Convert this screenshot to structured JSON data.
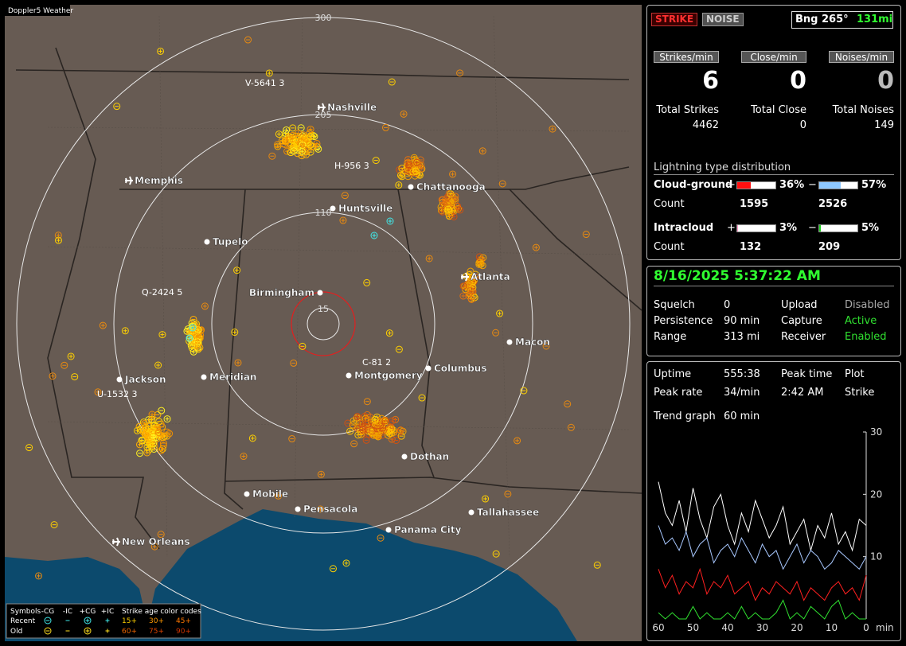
{
  "map": {
    "title": "Doppler5 Weather",
    "rings": [
      "300",
      "205",
      "110",
      "15"
    ],
    "cities": [
      "Nashville",
      "Memphis",
      "Chattanooga",
      "Huntsville",
      "Tupelo",
      "Atlanta",
      "Birmingham",
      "Macon",
      "Jackson",
      "Meridian",
      "Montgomery",
      "Columbus",
      "Dothan",
      "Mobile",
      "Pensacola",
      "Tallahassee",
      "Panama City",
      "New Orleans"
    ],
    "storms": [
      "V-5641 3",
      "H-956 3",
      "Q-2424 5",
      "C-81 2",
      "U-1532 3"
    ],
    "legend": {
      "symbols": "Symbols",
      "types": [
        "-CG",
        "-IC",
        "+CG",
        "+IC"
      ],
      "age_title": "Strike age color codes",
      "rows": [
        {
          "label": "Recent",
          "ages": [
            "15+",
            "30+",
            "45+"
          ]
        },
        {
          "label": "Old",
          "ages": [
            "60+",
            "75+",
            "90+"
          ]
        }
      ]
    }
  },
  "mode": {
    "strike": "STRIKE",
    "noise": "NOISE",
    "bearing": "Bng 265°",
    "distance": "131mi"
  },
  "rates": [
    {
      "label": "Strikes/min",
      "value": "6"
    },
    {
      "label": "Close/min",
      "value": "0"
    },
    {
      "label": "Noises/min",
      "value": "0"
    }
  ],
  "totals": [
    {
      "label": "Total Strikes",
      "value": "4462"
    },
    {
      "label": "Total Close",
      "value": "0"
    },
    {
      "label": "Total Noises",
      "value": "149"
    }
  ],
  "distribution": {
    "title": "Lightning type distribution",
    "rows": [
      {
        "label": "Cloud-ground",
        "pos_sign": "+",
        "pos": {
          "value": 36,
          "label": "36%"
        },
        "pos_color": "#ff1010",
        "neg_sign": "−",
        "neg": {
          "value": 57,
          "label": "57%"
        },
        "neg_color": "#8ec8ff",
        "count_label": "Count",
        "pos_count": "1595",
        "neg_count": "2526"
      },
      {
        "label": "Intracloud",
        "pos_sign": "+",
        "pos": {
          "value": 3,
          "label": "3%"
        },
        "pos_color": "#ff9ac8",
        "neg_sign": "−",
        "neg": {
          "value": 5,
          "label": "5%"
        },
        "neg_color": "#20d020",
        "count_label": "Count",
        "pos_count": "132",
        "neg_count": "209"
      }
    ]
  },
  "status": {
    "datetime": "8/16/2025 5:37:22 AM",
    "items": [
      {
        "label": "Squelch",
        "value": "0"
      },
      {
        "label": "Upload",
        "value": "Disabled",
        "color": "#a8a8a8"
      },
      {
        "label": "Persistence",
        "value": "90 min"
      },
      {
        "label": "Capture",
        "value": "Active",
        "color": "#30e030"
      },
      {
        "label": "Range",
        "value": "313 mi"
      },
      {
        "label": "Receiver",
        "value": "Enabled",
        "color": "#30e030"
      }
    ]
  },
  "stats": [
    [
      "Uptime",
      "555:38",
      "Peak time",
      "Plot"
    ],
    [
      "Peak rate",
      "34/min",
      "2:42 AM",
      "Strike"
    ],
    [
      "Trend graph",
      "60 min"
    ]
  ],
  "chart_data": {
    "type": "line",
    "x_label": "min",
    "x": [
      60,
      58,
      56,
      54,
      52,
      50,
      48,
      46,
      44,
      42,
      40,
      38,
      36,
      34,
      32,
      30,
      28,
      26,
      24,
      22,
      20,
      18,
      16,
      14,
      12,
      10,
      8,
      6,
      4,
      2,
      0
    ],
    "xlim": [
      60,
      0
    ],
    "xticks": [
      60,
      50,
      40,
      30,
      20,
      10,
      0
    ],
    "ylim": [
      0,
      30
    ],
    "yticks": [
      10,
      20,
      30
    ],
    "series": [
      {
        "color": "#ffffff",
        "values": [
          22,
          17,
          15,
          19,
          14,
          21,
          16,
          13,
          18,
          20,
          15,
          12,
          17,
          14,
          19,
          16,
          13,
          15,
          18,
          12,
          14,
          16,
          11,
          15,
          13,
          17,
          12,
          14,
          11,
          16,
          15
        ]
      },
      {
        "color": "#a8c8ff",
        "values": [
          15,
          12,
          13,
          11,
          14,
          10,
          12,
          13,
          9,
          11,
          12,
          10,
          13,
          11,
          9,
          12,
          10,
          11,
          8,
          10,
          12,
          9,
          11,
          10,
          8,
          9,
          11,
          10,
          9,
          8,
          10
        ]
      },
      {
        "color": "#ff2020",
        "values": [
          8,
          5,
          7,
          4,
          6,
          5,
          8,
          4,
          6,
          5,
          7,
          4,
          5,
          6,
          3,
          5,
          4,
          6,
          5,
          4,
          6,
          3,
          5,
          4,
          3,
          5,
          6,
          4,
          5,
          3,
          7
        ]
      },
      {
        "color": "#30e030",
        "values": [
          1,
          0,
          1,
          0,
          0,
          2,
          0,
          1,
          0,
          0,
          1,
          0,
          2,
          0,
          1,
          0,
          0,
          1,
          3,
          0,
          1,
          0,
          2,
          1,
          0,
          2,
          3,
          0,
          1,
          0,
          0
        ]
      }
    ]
  }
}
